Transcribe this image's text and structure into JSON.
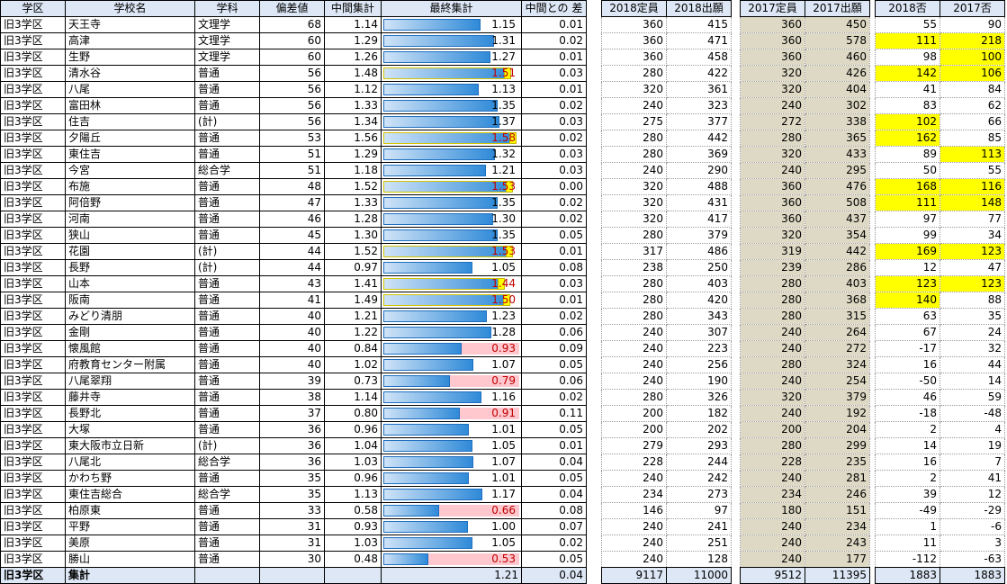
{
  "headers": {
    "district": "学区",
    "school": "学校名",
    "dept": "学科",
    "score": "偏差値",
    "mid": "中間集計",
    "final": "最終集計",
    "diff": "中間との 差",
    "cap2018": "2018定員",
    "app2018": "2018出願",
    "cap2017": "2017定員",
    "app2017": "2017出願",
    "no2018": "2018否",
    "no2017": "2017否"
  },
  "rows": [
    {
      "district": "旧3学区",
      "school": "天王寺",
      "dept": "文理学",
      "score": "68",
      "mid": "1.14",
      "final": "1.15",
      "final_ratio": 1.15,
      "diff": "0.01",
      "cap2018": "360",
      "app2018": "415",
      "cap2017": "360",
      "app2017": "450",
      "no2018": "55",
      "no2017": "90",
      "h18": false,
      "h17": false
    },
    {
      "district": "旧3学区",
      "school": "高津",
      "dept": "文理学",
      "score": "60",
      "mid": "1.29",
      "final": "1.31",
      "final_ratio": 1.31,
      "diff": "0.02",
      "cap2018": "360",
      "app2018": "471",
      "cap2017": "360",
      "app2017": "578",
      "no2018": "111",
      "no2017": "218",
      "h18": true,
      "h17": true
    },
    {
      "district": "旧3学区",
      "school": "生野",
      "dept": "文理学",
      "score": "60",
      "mid": "1.26",
      "final": "1.27",
      "final_ratio": 1.27,
      "diff": "0.01",
      "cap2018": "360",
      "app2018": "458",
      "cap2017": "360",
      "app2017": "460",
      "no2018": "98",
      "no2017": "100",
      "h18": false,
      "h17": true
    },
    {
      "district": "旧3学区",
      "school": "清水谷",
      "dept": "普通",
      "score": "56",
      "mid": "1.48",
      "final": "1.51",
      "final_ratio": 1.51,
      "diff": "0.03",
      "cap2018": "280",
      "app2018": "422",
      "cap2017": "320",
      "app2017": "426",
      "no2018": "142",
      "no2017": "106",
      "h18": true,
      "h17": true
    },
    {
      "district": "旧3学区",
      "school": "八尾",
      "dept": "普通",
      "score": "56",
      "mid": "1.12",
      "final": "1.13",
      "final_ratio": 1.13,
      "diff": "0.01",
      "cap2018": "320",
      "app2018": "361",
      "cap2017": "320",
      "app2017": "404",
      "no2018": "41",
      "no2017": "84",
      "h18": false,
      "h17": false
    },
    {
      "district": "旧3学区",
      "school": "富田林",
      "dept": "普通",
      "score": "56",
      "mid": "1.33",
      "final": "1.35",
      "final_ratio": 1.35,
      "diff": "0.02",
      "cap2018": "240",
      "app2018": "323",
      "cap2017": "240",
      "app2017": "302",
      "no2018": "83",
      "no2017": "62",
      "h18": false,
      "h17": false
    },
    {
      "district": "旧3学区",
      "school": "住吉",
      "dept": "(計)",
      "score": "56",
      "mid": "1.34",
      "final": "1.37",
      "final_ratio": 1.37,
      "diff": "0.03",
      "cap2018": "275",
      "app2018": "377",
      "cap2017": "272",
      "app2017": "338",
      "no2018": "102",
      "no2017": "66",
      "h18": true,
      "h17": false
    },
    {
      "district": "旧3学区",
      "school": "夕陽丘",
      "dept": "普通",
      "score": "53",
      "mid": "1.56",
      "final": "1.58",
      "final_ratio": 1.58,
      "diff": "0.02",
      "cap2018": "280",
      "app2018": "442",
      "cap2017": "280",
      "app2017": "365",
      "no2018": "162",
      "no2017": "85",
      "h18": true,
      "h17": false
    },
    {
      "district": "旧3学区",
      "school": "東住吉",
      "dept": "普通",
      "score": "51",
      "mid": "1.29",
      "final": "1.32",
      "final_ratio": 1.32,
      "diff": "0.03",
      "cap2018": "280",
      "app2018": "369",
      "cap2017": "320",
      "app2017": "433",
      "no2018": "89",
      "no2017": "113",
      "h18": false,
      "h17": true
    },
    {
      "district": "旧3学区",
      "school": "今宮",
      "dept": "総合学",
      "score": "51",
      "mid": "1.18",
      "final": "1.21",
      "final_ratio": 1.21,
      "diff": "0.03",
      "cap2018": "240",
      "app2018": "290",
      "cap2017": "240",
      "app2017": "295",
      "no2018": "50",
      "no2017": "55",
      "h18": false,
      "h17": false
    },
    {
      "district": "旧3学区",
      "school": "布施",
      "dept": "普通",
      "score": "48",
      "mid": "1.52",
      "final": "1.53",
      "final_ratio": 1.53,
      "diff": "0.00",
      "cap2018": "320",
      "app2018": "488",
      "cap2017": "360",
      "app2017": "476",
      "no2018": "168",
      "no2017": "116",
      "h18": true,
      "h17": true
    },
    {
      "district": "旧3学区",
      "school": "阿倍野",
      "dept": "普通",
      "score": "47",
      "mid": "1.33",
      "final": "1.35",
      "final_ratio": 1.35,
      "diff": "0.02",
      "cap2018": "320",
      "app2018": "431",
      "cap2017": "360",
      "app2017": "508",
      "no2018": "111",
      "no2017": "148",
      "h18": true,
      "h17": true
    },
    {
      "district": "旧3学区",
      "school": "河南",
      "dept": "普通",
      "score": "46",
      "mid": "1.28",
      "final": "1.30",
      "final_ratio": 1.3,
      "diff": "0.02",
      "cap2018": "320",
      "app2018": "417",
      "cap2017": "360",
      "app2017": "437",
      "no2018": "97",
      "no2017": "77",
      "h18": false,
      "h17": false
    },
    {
      "district": "旧3学区",
      "school": "狭山",
      "dept": "普通",
      "score": "45",
      "mid": "1.30",
      "final": "1.35",
      "final_ratio": 1.35,
      "diff": "0.05",
      "cap2018": "280",
      "app2018": "379",
      "cap2017": "320",
      "app2017": "354",
      "no2018": "99",
      "no2017": "34",
      "h18": false,
      "h17": false
    },
    {
      "district": "旧3学区",
      "school": "花園",
      "dept": "(計)",
      "score": "44",
      "mid": "1.52",
      "final": "1.53",
      "final_ratio": 1.53,
      "diff": "0.01",
      "cap2018": "317",
      "app2018": "486",
      "cap2017": "319",
      "app2017": "442",
      "no2018": "169",
      "no2017": "123",
      "h18": true,
      "h17": true
    },
    {
      "district": "旧3学区",
      "school": "長野",
      "dept": "(計)",
      "score": "44",
      "mid": "0.97",
      "final": "1.05",
      "final_ratio": 1.05,
      "diff": "0.08",
      "cap2018": "238",
      "app2018": "250",
      "cap2017": "239",
      "app2017": "286",
      "no2018": "12",
      "no2017": "47",
      "h18": false,
      "h17": false
    },
    {
      "district": "旧3学区",
      "school": "山本",
      "dept": "普通",
      "score": "43",
      "mid": "1.41",
      "final": "1.44",
      "final_ratio": 1.44,
      "diff": "0.03",
      "cap2018": "280",
      "app2018": "403",
      "cap2017": "280",
      "app2017": "403",
      "no2018": "123",
      "no2017": "123",
      "h18": true,
      "h17": true
    },
    {
      "district": "旧3学区",
      "school": "阪南",
      "dept": "普通",
      "score": "41",
      "mid": "1.49",
      "final": "1.50",
      "final_ratio": 1.5,
      "diff": "0.01",
      "cap2018": "280",
      "app2018": "420",
      "cap2017": "280",
      "app2017": "368",
      "no2018": "140",
      "no2017": "88",
      "h18": true,
      "h17": false
    },
    {
      "district": "旧3学区",
      "school": "みどり清朋",
      "dept": "普通",
      "score": "40",
      "mid": "1.21",
      "final": "1.23",
      "final_ratio": 1.23,
      "diff": "0.02",
      "cap2018": "280",
      "app2018": "343",
      "cap2017": "280",
      "app2017": "315",
      "no2018": "63",
      "no2017": "35",
      "h18": false,
      "h17": false
    },
    {
      "district": "旧3学区",
      "school": "金剛",
      "dept": "普通",
      "score": "40",
      "mid": "1.22",
      "final": "1.28",
      "final_ratio": 1.28,
      "diff": "0.06",
      "cap2018": "240",
      "app2018": "307",
      "cap2017": "240",
      "app2017": "264",
      "no2018": "67",
      "no2017": "24",
      "h18": false,
      "h17": false
    },
    {
      "district": "旧3学区",
      "school": "懐風館",
      "dept": "普通",
      "score": "40",
      "mid": "0.84",
      "final": "0.93",
      "final_ratio": 0.93,
      "diff": "0.09",
      "cap2018": "240",
      "app2018": "223",
      "cap2017": "240",
      "app2017": "272",
      "no2018": "-17",
      "no2017": "32",
      "h18": false,
      "h17": false
    },
    {
      "district": "旧3学区",
      "school": "府教育センター附属",
      "dept": "普通",
      "score": "40",
      "mid": "1.02",
      "final": "1.07",
      "final_ratio": 1.07,
      "diff": "0.05",
      "cap2018": "240",
      "app2018": "256",
      "cap2017": "280",
      "app2017": "324",
      "no2018": "16",
      "no2017": "44",
      "h18": false,
      "h17": false
    },
    {
      "district": "旧3学区",
      "school": "八尾翠翔",
      "dept": "普通",
      "score": "39",
      "mid": "0.73",
      "final": "0.79",
      "final_ratio": 0.79,
      "diff": "0.06",
      "cap2018": "240",
      "app2018": "190",
      "cap2017": "240",
      "app2017": "254",
      "no2018": "-50",
      "no2017": "14",
      "h18": false,
      "h17": false
    },
    {
      "district": "旧3学区",
      "school": "藤井寺",
      "dept": "普通",
      "score": "38",
      "mid": "1.14",
      "final": "1.16",
      "final_ratio": 1.16,
      "diff": "0.02",
      "cap2018": "280",
      "app2018": "326",
      "cap2017": "320",
      "app2017": "379",
      "no2018": "46",
      "no2017": "59",
      "h18": false,
      "h17": false
    },
    {
      "district": "旧3学区",
      "school": "長野北",
      "dept": "普通",
      "score": "37",
      "mid": "0.80",
      "final": "0.91",
      "final_ratio": 0.91,
      "diff": "0.11",
      "cap2018": "200",
      "app2018": "182",
      "cap2017": "240",
      "app2017": "192",
      "no2018": "-18",
      "no2017": "-48",
      "h18": false,
      "h17": false
    },
    {
      "district": "旧3学区",
      "school": "大塚",
      "dept": "普通",
      "score": "36",
      "mid": "0.96",
      "final": "1.01",
      "final_ratio": 1.01,
      "diff": "0.05",
      "cap2018": "200",
      "app2018": "202",
      "cap2017": "200",
      "app2017": "204",
      "no2018": "2",
      "no2017": "4",
      "h18": false,
      "h17": false
    },
    {
      "district": "旧3学区",
      "school": "東大阪市立日新",
      "dept": "(計)",
      "score": "36",
      "mid": "1.04",
      "final": "1.05",
      "final_ratio": 1.05,
      "diff": "0.01",
      "cap2018": "279",
      "app2018": "293",
      "cap2017": "280",
      "app2017": "299",
      "no2018": "14",
      "no2017": "19",
      "h18": false,
      "h17": false
    },
    {
      "district": "旧3学区",
      "school": "八尾北",
      "dept": "総合学",
      "score": "36",
      "mid": "1.03",
      "final": "1.07",
      "final_ratio": 1.07,
      "diff": "0.04",
      "cap2018": "228",
      "app2018": "244",
      "cap2017": "228",
      "app2017": "235",
      "no2018": "16",
      "no2017": "7",
      "h18": false,
      "h17": false
    },
    {
      "district": "旧3学区",
      "school": "かわち野",
      "dept": "普通",
      "score": "35",
      "mid": "0.96",
      "final": "1.01",
      "final_ratio": 1.01,
      "diff": "0.05",
      "cap2018": "240",
      "app2018": "242",
      "cap2017": "240",
      "app2017": "281",
      "no2018": "2",
      "no2017": "41",
      "h18": false,
      "h17": false
    },
    {
      "district": "旧3学区",
      "school": "東住吉総合",
      "dept": "総合学",
      "score": "35",
      "mid": "1.13",
      "final": "1.17",
      "final_ratio": 1.17,
      "diff": "0.04",
      "cap2018": "234",
      "app2018": "273",
      "cap2017": "234",
      "app2017": "246",
      "no2018": "39",
      "no2017": "12",
      "h18": false,
      "h17": false
    },
    {
      "district": "旧3学区",
      "school": "柏原東",
      "dept": "普通",
      "score": "33",
      "mid": "0.58",
      "final": "0.66",
      "final_ratio": 0.66,
      "diff": "0.08",
      "cap2018": "146",
      "app2018": "97",
      "cap2017": "180",
      "app2017": "151",
      "no2018": "-49",
      "no2017": "-29",
      "h18": false,
      "h17": false
    },
    {
      "district": "旧3学区",
      "school": "平野",
      "dept": "普通",
      "score": "31",
      "mid": "0.93",
      "final": "1.00",
      "final_ratio": 1.0,
      "diff": "0.07",
      "cap2018": "240",
      "app2018": "241",
      "cap2017": "240",
      "app2017": "234",
      "no2018": "1",
      "no2017": "-6",
      "h18": false,
      "h17": false
    },
    {
      "district": "旧3学区",
      "school": "美原",
      "dept": "普通",
      "score": "31",
      "mid": "1.03",
      "final": "1.05",
      "final_ratio": 1.05,
      "diff": "0.02",
      "cap2018": "240",
      "app2018": "251",
      "cap2017": "240",
      "app2017": "243",
      "no2018": "11",
      "no2017": "3",
      "h18": false,
      "h17": false
    },
    {
      "district": "旧3学区",
      "school": "勝山",
      "dept": "普通",
      "score": "30",
      "mid": "0.48",
      "final": "0.53",
      "final_ratio": 0.53,
      "diff": "0.05",
      "cap2018": "240",
      "app2018": "128",
      "cap2017": "240",
      "app2017": "177",
      "no2018": "-112",
      "no2017": "-63",
      "h18": false,
      "h17": false
    }
  ],
  "total": {
    "district": "旧3学区",
    "label": "集計",
    "final": "1.21",
    "diff": "0.04",
    "cap2018": "9117",
    "app2018": "11000",
    "cap2017": "9512",
    "app2017": "11395",
    "no2018": "1883",
    "no2017": "1883"
  },
  "colors": {
    "bar_blue": "#2f8ad8",
    "bar_pink": "#ffc7ce",
    "highlight": "#ffff00",
    "header_bg": "#dde7f5",
    "col2017_bg": "#ddd9c4"
  }
}
